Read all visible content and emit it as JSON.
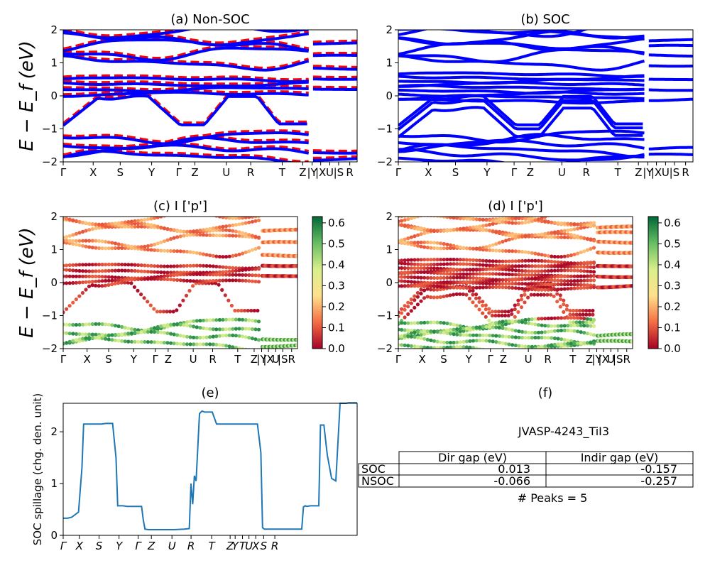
{
  "chart_data": [
    {
      "panel": "a",
      "type": "line",
      "title": "(a) Non-SOC",
      "ylabel": "E − E_f (eV)",
      "ylim": [
        -2,
        2
      ],
      "yticks": [
        "−2",
        "−1",
        "0",
        "1",
        "2"
      ],
      "kpath_labels": [
        "Γ",
        "X",
        "S",
        "Y",
        "Γ",
        "Z",
        "U",
        "R",
        "T",
        "Z",
        "|Y",
        "|X",
        "U",
        "|S",
        "R"
      ],
      "series": [
        {
          "style": "dashed",
          "color": "#ff0000"
        },
        {
          "style": "solid",
          "color": "#0000ff"
        }
      ]
    },
    {
      "panel": "b",
      "type": "line",
      "title": "(b) SOC",
      "ylim": [
        -2,
        2
      ],
      "yticks": [
        "−2",
        "−1",
        "0",
        "1",
        "2"
      ],
      "kpath_labels": [
        "Γ",
        "X",
        "S",
        "Y",
        "Γ",
        "Z",
        "U",
        "R",
        "T",
        "Z",
        "|Y",
        "|X",
        "U",
        "|S",
        "R"
      ],
      "series": [
        {
          "style": "solid",
          "color": "#0000ff"
        }
      ]
    },
    {
      "panel": "c",
      "type": "scatter",
      "title": "(c)  I ['p']",
      "ylabel": "E − E_f (eV)",
      "ylim": [
        -2,
        2
      ],
      "yticks": [
        "−2",
        "−1",
        "0",
        "1",
        "2"
      ],
      "kpath_labels": [
        "Γ",
        "X",
        "S",
        "Y",
        "Γ",
        "Z",
        "U",
        "R",
        "T",
        "Z",
        "|Y",
        "|X",
        "U",
        "|S",
        "R"
      ],
      "colorbar": {
        "min": 0.0,
        "max": 0.63,
        "ticks": [
          "0.0",
          "0.1",
          "0.2",
          "0.3",
          "0.4",
          "0.5",
          "0.6"
        ],
        "colormap": "RdYlGn"
      }
    },
    {
      "panel": "d",
      "type": "scatter",
      "title": "(d) I ['p']",
      "ylim": [
        -2,
        2
      ],
      "yticks": [
        "−2",
        "−1",
        "0",
        "1",
        "2"
      ],
      "kpath_labels": [
        "Γ",
        "X",
        "S",
        "Y",
        "Γ",
        "Z",
        "U",
        "R",
        "T",
        "Z",
        "|Y",
        "|X",
        "U",
        "|S",
        "R"
      ],
      "colorbar": {
        "min": 0.0,
        "max": 0.63,
        "ticks": [
          "0.0",
          "0.1",
          "0.2",
          "0.3",
          "0.4",
          "0.5",
          "0.6"
        ],
        "colormap": "RdYlGn"
      }
    },
    {
      "panel": "e",
      "type": "line",
      "title": "(e)",
      "ylabel": "SOC spillage (chg. den. unit)",
      "ylim": [
        0,
        2.55
      ],
      "yticks": [
        "0",
        "1",
        "2"
      ],
      "kpath_labels": [
        "Γ",
        "X",
        "S",
        "Y",
        "Γ",
        "Z",
        "U",
        "R",
        "T",
        "Z",
        "Y",
        "T",
        "U",
        "X",
        "S",
        "R"
      ],
      "x": [
        0,
        5,
        10,
        18,
        22,
        24,
        26,
        28,
        30,
        45,
        50,
        58,
        62,
        64,
        70,
        75,
        80,
        88,
        92,
        94,
        96,
        100,
        115,
        130,
        142,
        148,
        150,
        152,
        154,
        156,
        160,
        163,
        166,
        170,
        175,
        180,
        185,
        200,
        212,
        222,
        228,
        232,
        234,
        236,
        240,
        245,
        250,
        260,
        275,
        280,
        282,
        284,
        286,
        290,
        295,
        300,
        302,
        304,
        306,
        310,
        315,
        320,
        325,
        332,
        335,
        345
      ],
      "values": [
        0.33,
        0.33,
        0.35,
        0.45,
        1.3,
        2.15,
        2.15,
        2.15,
        2.15,
        2.15,
        2.16,
        2.16,
        1.5,
        0.57,
        0.57,
        0.56,
        0.56,
        0.56,
        0.56,
        0.3,
        0.12,
        0.11,
        0.11,
        0.11,
        0.12,
        0.13,
        1.0,
        0.6,
        1.15,
        1.05,
        2.35,
        2.4,
        2.38,
        2.38,
        2.38,
        2.15,
        2.15,
        2.15,
        2.15,
        2.15,
        2.15,
        1.6,
        0.15,
        0.12,
        0.12,
        0.12,
        0.12,
        0.12,
        0.12,
        0.12,
        0.55,
        0.57,
        0.56,
        0.57,
        0.57,
        0.57,
        2.13,
        2.13,
        2.13,
        1.55,
        1.1,
        1.05,
        2.55,
        2.55,
        2.56,
        2.56
      ]
    },
    {
      "panel": "f",
      "type": "table",
      "title": "(f)",
      "caption": "JVASP-4243_TiI3",
      "columns": [
        "Dir gap (eV)",
        "Indir gap (eV)"
      ],
      "rows": [
        {
          "label": "SOC",
          "dir": "0.013",
          "indir": "-0.157"
        },
        {
          "label": "NSOC",
          "dir": "-0.066",
          "indir": "-0.257"
        }
      ],
      "footer": "# Peaks = 5"
    }
  ]
}
